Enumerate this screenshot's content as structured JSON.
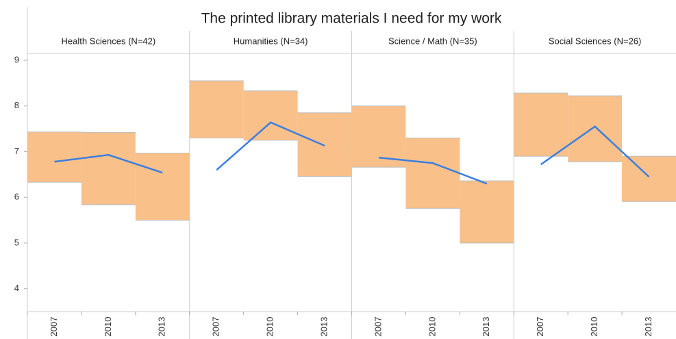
{
  "chart_data": {
    "type": "band_line",
    "title": "The printed library materials I need for my work",
    "categories": [
      "2007",
      "2010",
      "2013"
    ],
    "ylim": [
      3.5,
      9.15
    ],
    "yticks": [
      4,
      5,
      6,
      7,
      8,
      9
    ],
    "band_color": "#f9c08a",
    "line_color": "#3a7fe0",
    "panels": [
      {
        "title": "Health Sciences (N=42)",
        "mean": [
          6.78,
          6.93,
          6.54
        ],
        "low": [
          6.33,
          5.84,
          5.5
        ],
        "high": [
          7.43,
          7.42,
          6.97
        ]
      },
      {
        "title": "Humanities (N=34)",
        "mean": [
          6.6,
          7.64,
          7.13
        ],
        "low": [
          7.3,
          7.25,
          6.46
        ],
        "high": [
          8.55,
          8.33,
          7.85
        ]
      },
      {
        "title": "Science / Math (N=35)",
        "mean": [
          6.87,
          6.75,
          6.3
        ],
        "low": [
          6.66,
          5.76,
          5.0
        ],
        "high": [
          8.0,
          7.3,
          6.36
        ]
      },
      {
        "title": "Social Sciences (N=26)",
        "mean": [
          6.72,
          7.55,
          6.45
        ],
        "low": [
          6.9,
          6.78,
          5.91
        ],
        "high": [
          8.28,
          8.22,
          6.9
        ]
      }
    ]
  }
}
